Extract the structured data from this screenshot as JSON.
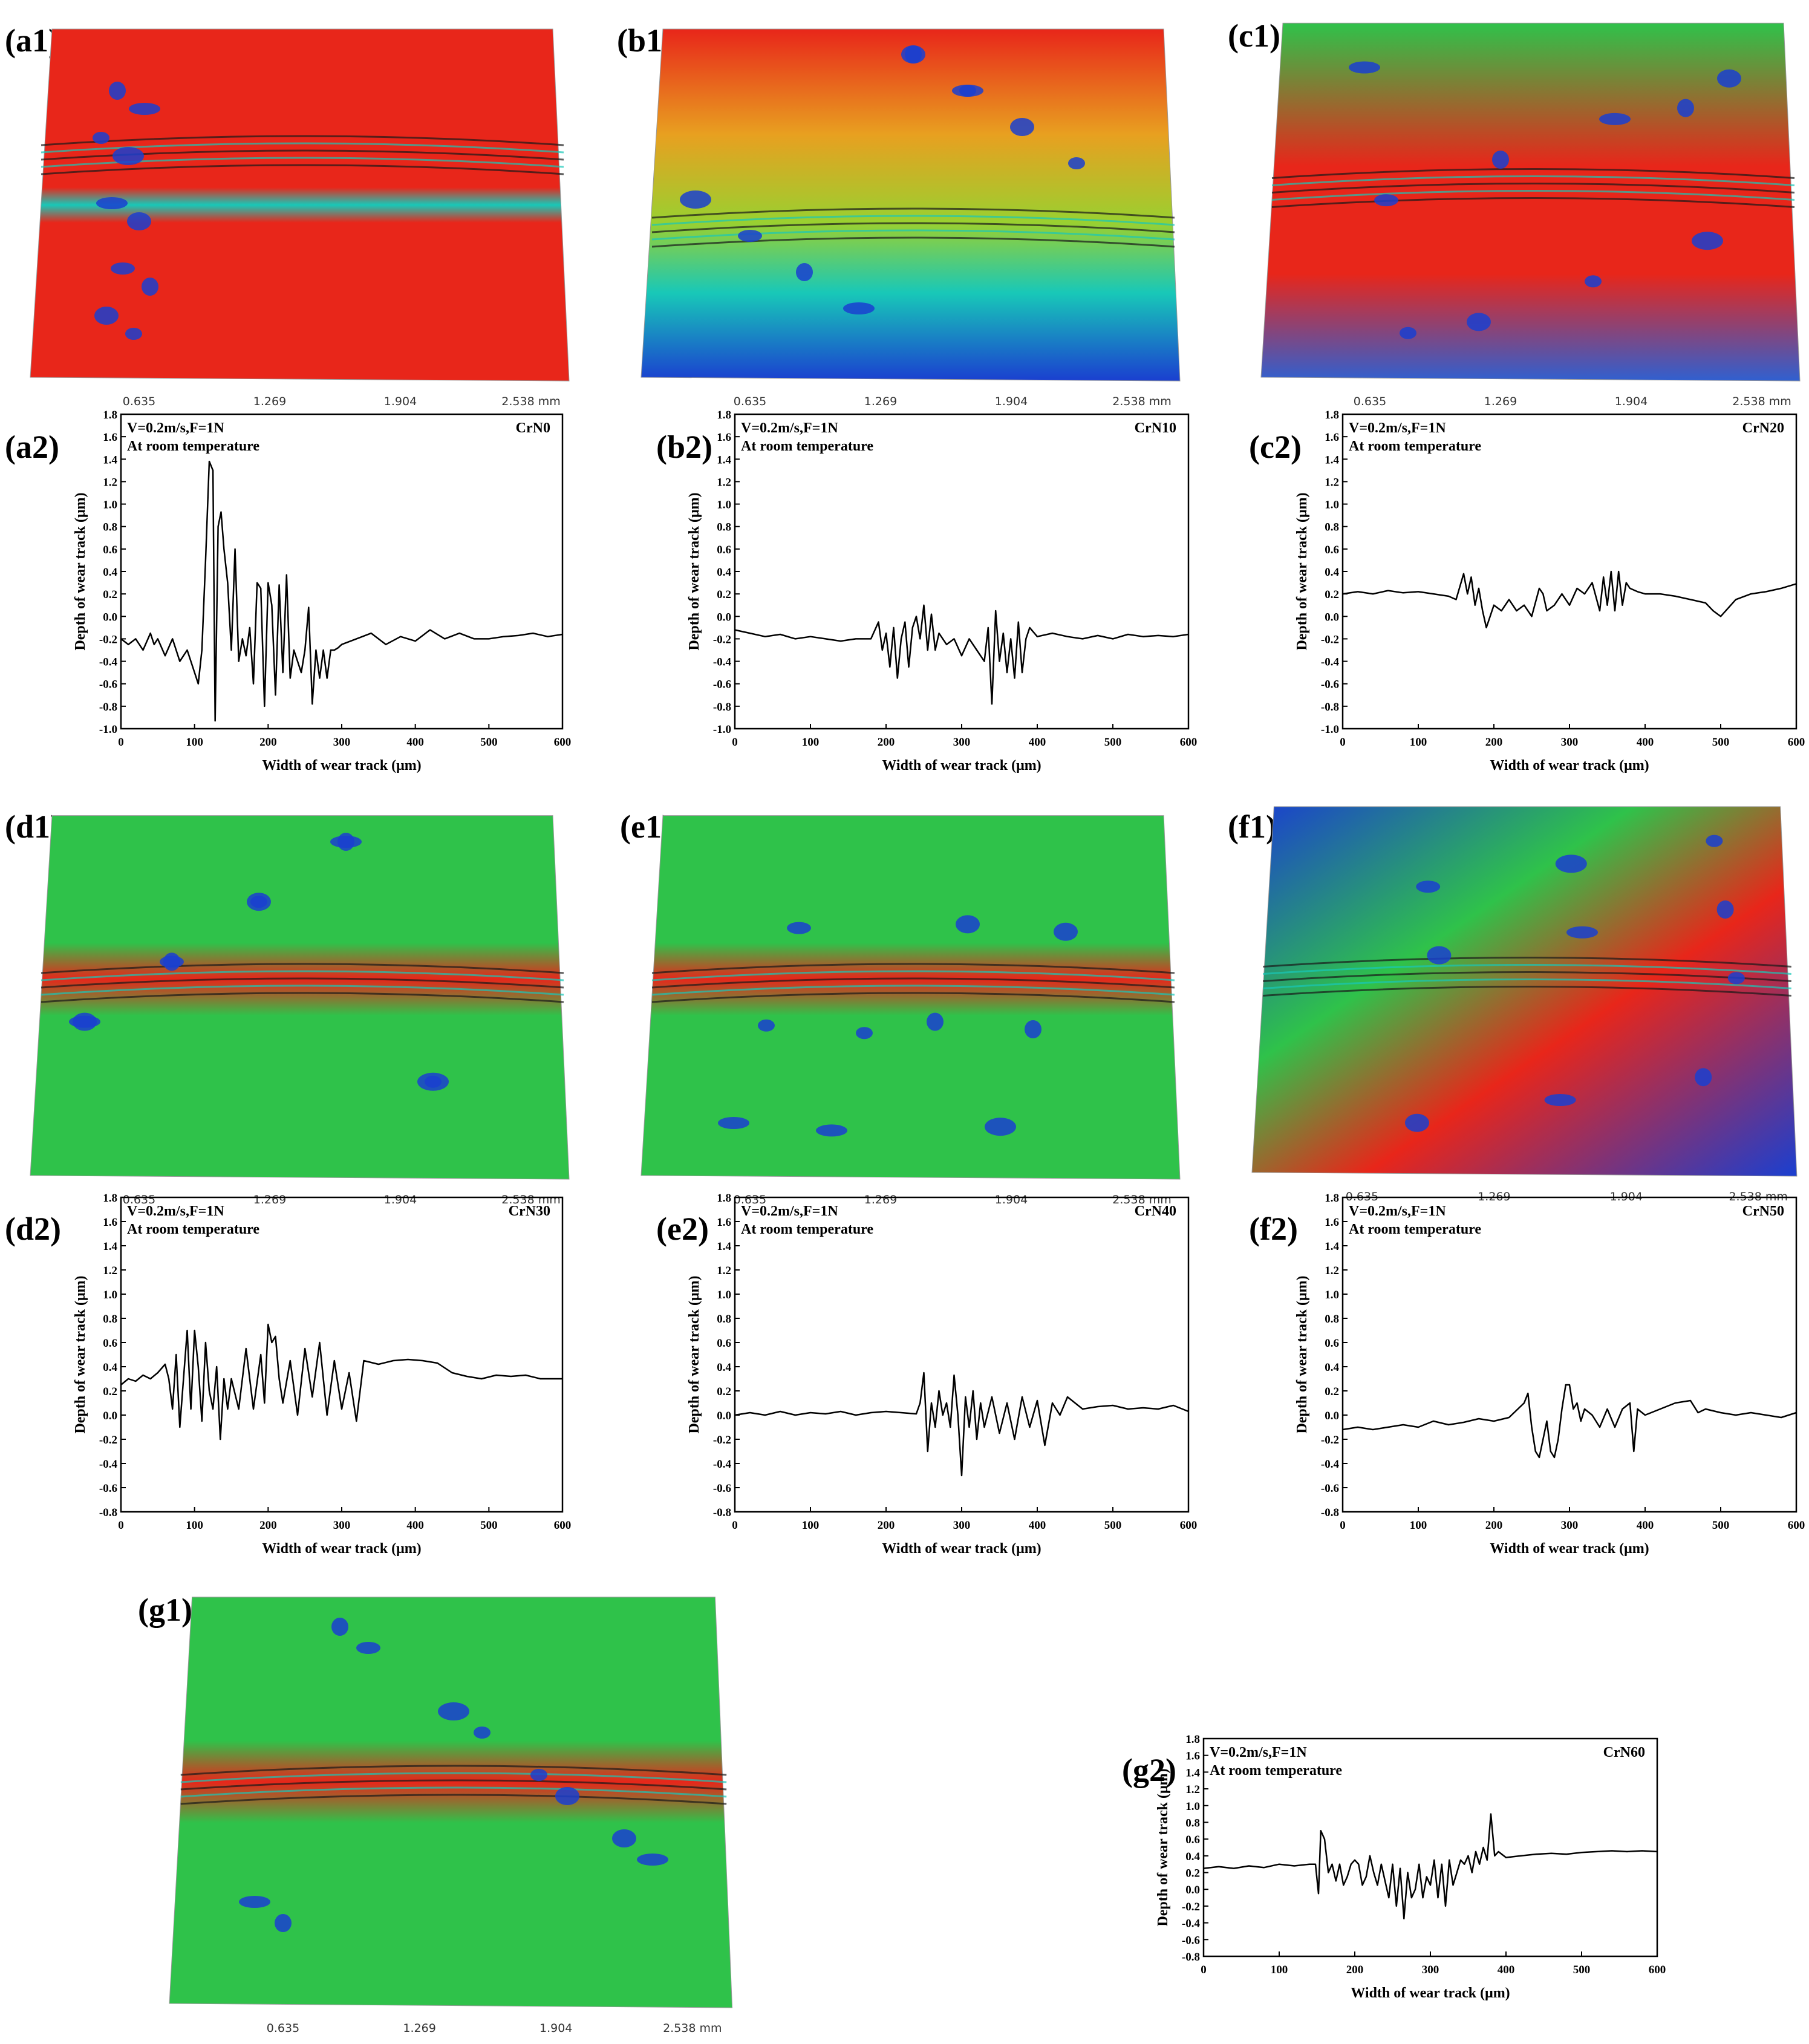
{
  "panels": {
    "a1": "(a1)",
    "b1": "(b1)",
    "c1": "(c1)",
    "d1": "(d1)",
    "e1": "(e1)",
    "f1": "(f1)",
    "g1": "(g1)",
    "a2": "(a2)",
    "b2": "(b2)",
    "c2": "(c2)",
    "d2": "(d2)",
    "e2": "(e2)",
    "f2": "(f2)",
    "g2": "(g2)"
  },
  "surface_scale": {
    "ticks": [
      "0.635",
      "1.269",
      "1.904",
      "2.538 mm"
    ]
  },
  "colors": {
    "red": "#e8261a",
    "green": "#2fc24a",
    "blue": "#1a3fd0",
    "cyan": "#18c8b8",
    "line": "#000000"
  },
  "chart_data": [
    {
      "type": "line",
      "id": "a2",
      "annotation1": "V=0.2m/s,F=1N",
      "annotation2": "At room temperature",
      "sample": "CrN0",
      "xlabel": "Width of wear track (μm)",
      "ylabel": "Depth of wear track (μm)",
      "xlim": [
        0,
        600
      ],
      "ylim": [
        -1.0,
        1.8
      ],
      "xticks": [
        "0",
        "100",
        "200",
        "300",
        "400",
        "500",
        "600"
      ],
      "yticks": [
        "-1.0",
        "-0.8",
        "-0.6",
        "-0.4",
        "-0.2",
        "0.0",
        "0.2",
        "0.4",
        "0.6",
        "0.8",
        "1.0",
        "1.2",
        "1.4",
        "1.6",
        "1.8"
      ],
      "x": [
        0,
        10,
        20,
        30,
        40,
        45,
        50,
        60,
        70,
        80,
        90,
        100,
        105,
        110,
        115,
        120,
        125,
        128,
        132,
        136,
        140,
        145,
        150,
        155,
        160,
        165,
        170,
        175,
        180,
        185,
        190,
        195,
        200,
        205,
        210,
        215,
        220,
        225,
        230,
        235,
        240,
        245,
        250,
        255,
        260,
        265,
        270,
        275,
        280,
        285,
        290,
        295,
        300,
        320,
        340,
        360,
        380,
        400,
        420,
        440,
        460,
        480,
        500,
        520,
        540,
        560,
        580,
        600
      ],
      "y": [
        -0.2,
        -0.25,
        -0.2,
        -0.3,
        -0.15,
        -0.25,
        -0.2,
        -0.35,
        -0.2,
        -0.4,
        -0.3,
        -0.5,
        -0.6,
        -0.3,
        0.5,
        1.38,
        1.3,
        -0.93,
        0.8,
        0.93,
        0.6,
        0.3,
        -0.3,
        0.6,
        -0.4,
        -0.2,
        -0.35,
        -0.1,
        -0.6,
        0.3,
        0.25,
        -0.8,
        0.3,
        0.1,
        -0.7,
        0.28,
        -0.5,
        0.37,
        -0.55,
        -0.3,
        -0.4,
        -0.5,
        -0.3,
        0.08,
        -0.78,
        -0.3,
        -0.55,
        -0.3,
        -0.55,
        -0.3,
        -0.3,
        -0.28,
        -0.25,
        -0.2,
        -0.15,
        -0.25,
        -0.18,
        -0.22,
        -0.12,
        -0.2,
        -0.15,
        -0.2,
        -0.2,
        -0.18,
        -0.17,
        -0.15,
        -0.18,
        -0.16
      ]
    },
    {
      "type": "line",
      "id": "b2",
      "annotation1": "V=0.2m/s,F=1N",
      "annotation2": "At room temperature",
      "sample": "CrN10",
      "xlabel": "Width of wear track (μm)",
      "ylabel": "Depth of wear track (μm)",
      "xlim": [
        0,
        600
      ],
      "ylim": [
        -1.0,
        1.8
      ],
      "xticks": [
        "0",
        "100",
        "200",
        "300",
        "400",
        "500",
        "600"
      ],
      "yticks": [
        "-1.0",
        "-0.8",
        "-0.6",
        "-0.4",
        "-0.2",
        "0.0",
        "0.2",
        "0.4",
        "0.6",
        "0.8",
        "1.0",
        "1.2",
        "1.4",
        "1.6",
        "1.8"
      ],
      "x": [
        0,
        20,
        40,
        60,
        80,
        100,
        120,
        140,
        160,
        180,
        190,
        195,
        200,
        205,
        210,
        215,
        220,
        225,
        230,
        235,
        240,
        245,
        250,
        255,
        260,
        265,
        270,
        280,
        290,
        300,
        310,
        320,
        330,
        335,
        340,
        345,
        350,
        355,
        360,
        365,
        370,
        375,
        380,
        385,
        390,
        400,
        420,
        440,
        460,
        480,
        500,
        520,
        540,
        560,
        580,
        600
      ],
      "y": [
        -0.12,
        -0.15,
        -0.18,
        -0.16,
        -0.2,
        -0.18,
        -0.2,
        -0.22,
        -0.2,
        -0.2,
        -0.05,
        -0.3,
        -0.15,
        -0.45,
        -0.1,
        -0.55,
        -0.2,
        -0.05,
        -0.45,
        -0.1,
        0.0,
        -0.2,
        0.1,
        -0.3,
        0.02,
        -0.3,
        -0.15,
        -0.25,
        -0.2,
        -0.35,
        -0.2,
        -0.3,
        -0.4,
        -0.1,
        -0.78,
        0.05,
        -0.4,
        -0.15,
        -0.5,
        -0.2,
        -0.55,
        -0.05,
        -0.5,
        -0.2,
        -0.1,
        -0.18,
        -0.15,
        -0.18,
        -0.2,
        -0.17,
        -0.2,
        -0.16,
        -0.18,
        -0.17,
        -0.18,
        -0.16
      ]
    },
    {
      "type": "line",
      "id": "c2",
      "annotation1": "V=0.2m/s,F=1N",
      "annotation2": "At room temperature",
      "sample": "CrN20",
      "xlabel": "Width of wear track (μm)",
      "ylabel": "Depth of wear track (μm)",
      "xlim": [
        0,
        600
      ],
      "ylim": [
        -1.0,
        1.8
      ],
      "xticks": [
        "0",
        "100",
        "200",
        "300",
        "400",
        "500",
        "600"
      ],
      "yticks": [
        "-1.0",
        "-0.8",
        "-0.6",
        "-0.4",
        "-0.2",
        "0.0",
        "0.2",
        "0.4",
        "0.6",
        "0.8",
        "1.0",
        "1.2",
        "1.4",
        "1.6",
        "1.8"
      ],
      "x": [
        0,
        20,
        40,
        60,
        80,
        100,
        120,
        140,
        150,
        160,
        165,
        170,
        175,
        180,
        185,
        190,
        200,
        210,
        220,
        230,
        240,
        250,
        260,
        265,
        270,
        280,
        290,
        300,
        310,
        320,
        330,
        340,
        345,
        350,
        355,
        360,
        365,
        370,
        375,
        380,
        390,
        400,
        420,
        440,
        460,
        480,
        490,
        500,
        520,
        540,
        560,
        580,
        600
      ],
      "y": [
        0.2,
        0.22,
        0.2,
        0.23,
        0.21,
        0.22,
        0.2,
        0.18,
        0.15,
        0.38,
        0.2,
        0.35,
        0.1,
        0.25,
        0.05,
        -0.1,
        0.1,
        0.05,
        0.15,
        0.05,
        0.1,
        0.0,
        0.25,
        0.2,
        0.05,
        0.1,
        0.2,
        0.1,
        0.25,
        0.2,
        0.3,
        0.05,
        0.35,
        0.1,
        0.4,
        0.05,
        0.4,
        0.1,
        0.3,
        0.25,
        0.22,
        0.2,
        0.2,
        0.18,
        0.15,
        0.12,
        0.05,
        0.0,
        0.15,
        0.2,
        0.22,
        0.25,
        0.29
      ]
    },
    {
      "type": "line",
      "id": "d2",
      "annotation1": "V=0.2m/s,F=1N",
      "annotation2": "At room temperature",
      "sample": "CrN30",
      "xlabel": "Width of wear track (μm)",
      "ylabel": "Depth of wear track (μm)",
      "xlim": [
        0,
        600
      ],
      "ylim": [
        -0.8,
        1.8
      ],
      "xticks": [
        "0",
        "100",
        "200",
        "300",
        "400",
        "500",
        "600"
      ],
      "yticks": [
        "-0.8",
        "-0.6",
        "-0.4",
        "-0.2",
        "0.0",
        "0.2",
        "0.4",
        "0.6",
        "0.8",
        "1.0",
        "1.2",
        "1.4",
        "1.6",
        "1.8"
      ],
      "x": [
        0,
        10,
        20,
        30,
        40,
        50,
        60,
        65,
        70,
        75,
        80,
        85,
        90,
        95,
        100,
        105,
        110,
        115,
        120,
        125,
        130,
        135,
        140,
        145,
        150,
        160,
        170,
        180,
        190,
        195,
        200,
        205,
        210,
        215,
        220,
        230,
        240,
        250,
        260,
        270,
        280,
        290,
        300,
        310,
        320,
        330,
        350,
        370,
        390,
        410,
        430,
        450,
        470,
        490,
        510,
        530,
        550,
        570,
        590,
        600
      ],
      "y": [
        0.25,
        0.3,
        0.28,
        0.33,
        0.3,
        0.35,
        0.42,
        0.3,
        0.05,
        0.5,
        -0.1,
        0.3,
        0.7,
        0.05,
        0.7,
        0.4,
        -0.05,
        0.6,
        0.2,
        0.05,
        0.4,
        -0.2,
        0.3,
        0.05,
        0.3,
        0.05,
        0.55,
        0.05,
        0.5,
        0.1,
        0.75,
        0.6,
        0.65,
        0.3,
        0.1,
        0.45,
        0.0,
        0.55,
        0.15,
        0.6,
        0.0,
        0.45,
        0.05,
        0.35,
        -0.05,
        0.45,
        0.42,
        0.45,
        0.46,
        0.45,
        0.43,
        0.35,
        0.32,
        0.3,
        0.33,
        0.32,
        0.33,
        0.3,
        0.3,
        0.3
      ]
    },
    {
      "type": "line",
      "id": "e2",
      "annotation1": "V=0.2m/s,F=1N",
      "annotation2": "At room temperature",
      "sample": "CrN40",
      "xlabel": "Width of wear track (μm)",
      "ylabel": "Depth of wear track (μm)",
      "xlim": [
        0,
        600
      ],
      "ylim": [
        -0.8,
        1.8
      ],
      "xticks": [
        "0",
        "100",
        "200",
        "300",
        "400",
        "500",
        "600"
      ],
      "yticks": [
        "-0.8",
        "-0.6",
        "-0.4",
        "-0.2",
        "0.0",
        "0.2",
        "0.4",
        "0.6",
        "0.8",
        "1.0",
        "1.2",
        "1.4",
        "1.6",
        "1.8"
      ],
      "x": [
        0,
        20,
        40,
        60,
        80,
        100,
        120,
        140,
        160,
        180,
        200,
        220,
        240,
        245,
        250,
        255,
        260,
        265,
        270,
        275,
        280,
        285,
        290,
        295,
        300,
        305,
        310,
        315,
        320,
        325,
        330,
        340,
        350,
        360,
        370,
        380,
        390,
        400,
        410,
        420,
        430,
        440,
        450,
        460,
        480,
        500,
        520,
        540,
        560,
        580,
        600
      ],
      "y": [
        0.0,
        0.02,
        0.0,
        0.03,
        0.0,
        0.02,
        0.01,
        0.03,
        0.0,
        0.02,
        0.03,
        0.02,
        0.01,
        0.1,
        0.35,
        -0.3,
        0.1,
        -0.1,
        0.2,
        0.0,
        0.1,
        -0.1,
        0.33,
        0.0,
        -0.5,
        0.15,
        -0.1,
        0.2,
        -0.2,
        0.1,
        -0.1,
        0.15,
        -0.15,
        0.1,
        -0.2,
        0.15,
        -0.1,
        0.12,
        -0.25,
        0.1,
        0.0,
        0.15,
        0.1,
        0.05,
        0.07,
        0.08,
        0.05,
        0.06,
        0.05,
        0.08,
        0.03
      ]
    },
    {
      "type": "line",
      "id": "f2",
      "annotation1": "V=0.2m/s,F=1N",
      "annotation2": "At room temperature",
      "sample": "CrN50",
      "xlabel": "Width of wear track (μm)",
      "ylabel": "Depth of wear track (μm)",
      "xlim": [
        0,
        600
      ],
      "ylim": [
        -0.8,
        1.8
      ],
      "xticks": [
        "0",
        "100",
        "200",
        "300",
        "400",
        "500",
        "600"
      ],
      "yticks": [
        "-0.8",
        "-0.6",
        "-0.4",
        "-0.2",
        "0.0",
        "0.2",
        "0.4",
        "0.6",
        "0.8",
        "1.0",
        "1.2",
        "1.4",
        "1.6",
        "1.8"
      ],
      "x": [
        0,
        20,
        40,
        60,
        80,
        100,
        120,
        140,
        160,
        180,
        200,
        220,
        240,
        245,
        250,
        255,
        260,
        265,
        270,
        275,
        280,
        285,
        290,
        295,
        300,
        305,
        310,
        315,
        320,
        330,
        340,
        350,
        360,
        370,
        380,
        385,
        390,
        400,
        420,
        440,
        460,
        470,
        480,
        500,
        520,
        540,
        560,
        580,
        600
      ],
      "y": [
        -0.12,
        -0.1,
        -0.12,
        -0.1,
        -0.08,
        -0.1,
        -0.05,
        -0.08,
        -0.06,
        -0.03,
        -0.05,
        -0.02,
        0.1,
        0.18,
        -0.1,
        -0.3,
        -0.35,
        -0.2,
        -0.05,
        -0.3,
        -0.35,
        -0.2,
        0.05,
        0.25,
        0.25,
        0.05,
        0.1,
        -0.05,
        0.05,
        0.0,
        -0.1,
        0.05,
        -0.1,
        0.05,
        0.1,
        -0.3,
        0.05,
        0.0,
        0.05,
        0.1,
        0.12,
        0.02,
        0.05,
        0.02,
        0.0,
        0.02,
        0.0,
        -0.02,
        0.02
      ]
    },
    {
      "type": "line",
      "id": "g2",
      "annotation1": "V=0.2m/s,F=1N",
      "annotation2": "At room temperature",
      "sample": "CrN60",
      "xlabel": "Width of wear track (μm)",
      "ylabel": "Depth of wear track (μm)",
      "xlim": [
        0,
        600
      ],
      "ylim": [
        -0.8,
        1.8
      ],
      "xticks": [
        "0",
        "100",
        "200",
        "300",
        "400",
        "500",
        "600"
      ],
      "yticks": [
        "-0.8",
        "-0.6",
        "-0.4",
        "-0.2",
        "0.0",
        "0.2",
        "0.4",
        "0.6",
        "0.8",
        "1.0",
        "1.2",
        "1.4",
        "1.6",
        "1.8"
      ],
      "x": [
        0,
        20,
        40,
        60,
        80,
        100,
        120,
        140,
        148,
        152,
        155,
        160,
        165,
        170,
        175,
        180,
        185,
        190,
        195,
        200,
        205,
        210,
        215,
        220,
        225,
        230,
        235,
        240,
        245,
        250,
        255,
        260,
        265,
        270,
        275,
        280,
        285,
        290,
        295,
        300,
        305,
        310,
        315,
        320,
        325,
        330,
        335,
        340,
        345,
        350,
        355,
        360,
        365,
        370,
        375,
        380,
        385,
        390,
        400,
        420,
        440,
        460,
        480,
        500,
        520,
        540,
        560,
        580,
        600
      ],
      "y": [
        0.25,
        0.27,
        0.25,
        0.28,
        0.26,
        0.3,
        0.28,
        0.3,
        0.3,
        -0.05,
        0.7,
        0.6,
        0.2,
        0.3,
        0.1,
        0.3,
        0.05,
        0.15,
        0.3,
        0.35,
        0.3,
        0.05,
        0.15,
        0.4,
        0.2,
        0.05,
        0.3,
        0.1,
        -0.1,
        0.3,
        -0.2,
        0.25,
        -0.35,
        0.2,
        -0.1,
        0.0,
        0.3,
        -0.1,
        0.15,
        0.05,
        0.35,
        -0.1,
        0.3,
        -0.2,
        0.35,
        0.05,
        0.2,
        0.35,
        0.3,
        0.4,
        0.2,
        0.45,
        0.3,
        0.5,
        0.35,
        0.9,
        0.4,
        0.45,
        0.38,
        0.4,
        0.42,
        0.43,
        0.42,
        0.44,
        0.45,
        0.46,
        0.45,
        0.46,
        0.45
      ]
    }
  ]
}
